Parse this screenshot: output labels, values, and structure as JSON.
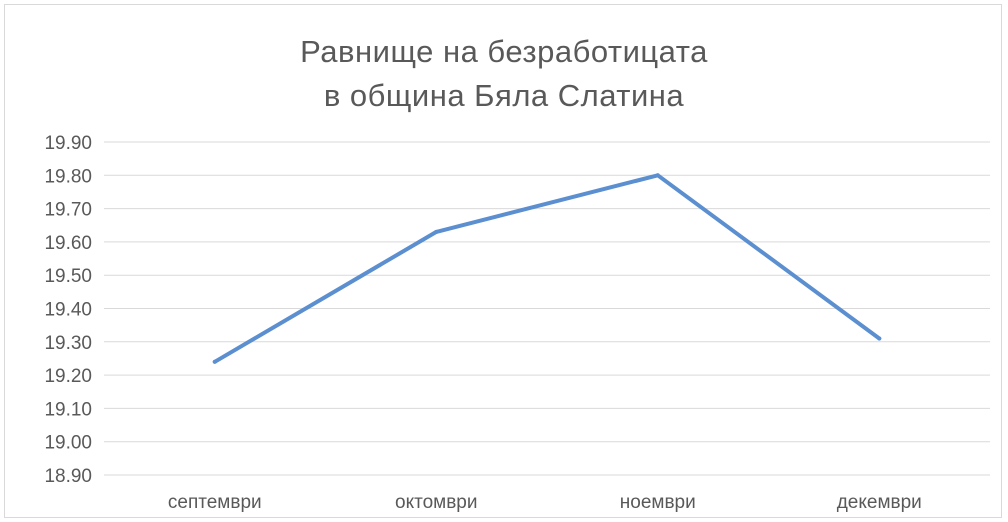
{
  "chart_data": {
    "type": "line",
    "title_lines": [
      "Равнище на безработицата",
      "в община Бяла Слатина"
    ],
    "categories": [
      "септември",
      "октомври",
      "ноември",
      "декември"
    ],
    "series": [
      {
        "values": [
          19.24,
          19.63,
          19.8,
          19.31
        ],
        "color": "#5b8fd0"
      }
    ],
    "y_ticks": [
      "19.90",
      "19.80",
      "19.70",
      "19.60",
      "19.50",
      "19.40",
      "19.30",
      "19.20",
      "19.10",
      "19.00",
      "18.90"
    ],
    "ylim": [
      18.9,
      19.9
    ],
    "grid": true,
    "legend": "none"
  }
}
